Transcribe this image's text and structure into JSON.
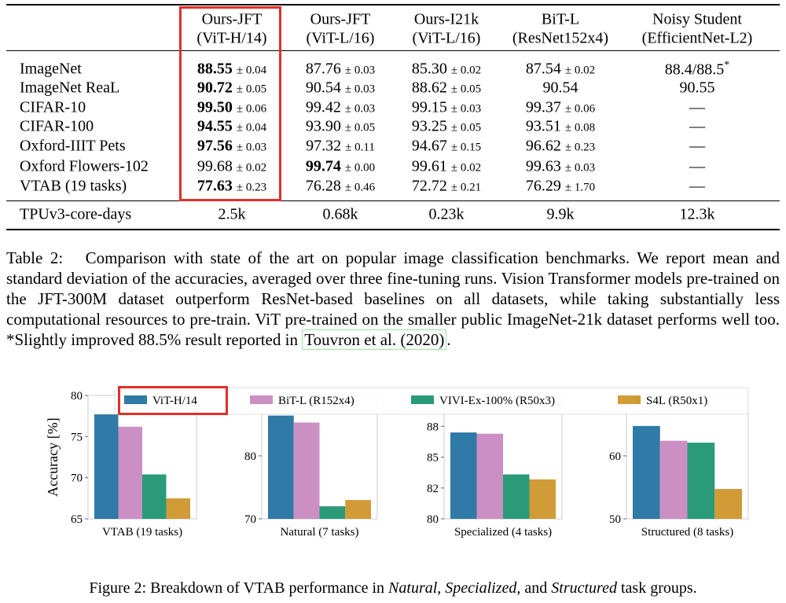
{
  "table": {
    "header": [
      [
        "Ours-JFT",
        "(ViT-H/14)"
      ],
      [
        "Ours-JFT",
        "(ViT-L/16)"
      ],
      [
        "Ours-I21k",
        "(ViT-L/16)"
      ],
      [
        "BiT-L",
        "(ResNet152x4)"
      ],
      [
        "Noisy Student",
        "(EfficientNet-L2)"
      ]
    ],
    "rows": [
      {
        "label": "ImageNet",
        "cells": [
          {
            "value": "88.55",
            "std": "± 0.04",
            "bold": true
          },
          {
            "value": "87.76",
            "std": "± 0.03"
          },
          {
            "value": "85.30",
            "std": "± 0.02"
          },
          {
            "value": "87.54",
            "std": "± 0.02"
          },
          {
            "value": "88.4/88.5",
            "note": "*"
          }
        ]
      },
      {
        "label": "ImageNet ReaL",
        "cells": [
          {
            "value": "90.72",
            "std": "± 0.05",
            "bold": true
          },
          {
            "value": "90.54",
            "std": "± 0.03"
          },
          {
            "value": "88.62",
            "std": "± 0.05"
          },
          {
            "value": "90.54"
          },
          {
            "value": "90.55"
          }
        ]
      },
      {
        "label": "CIFAR-10",
        "cells": [
          {
            "value": "99.50",
            "std": "± 0.06",
            "bold": true
          },
          {
            "value": "99.42",
            "std": "± 0.03"
          },
          {
            "value": "99.15",
            "std": "± 0.03"
          },
          {
            "value": "99.37",
            "std": "± 0.06"
          },
          {
            "value": "—"
          }
        ]
      },
      {
        "label": "CIFAR-100",
        "cells": [
          {
            "value": "94.55",
            "std": "± 0.04",
            "bold": true
          },
          {
            "value": "93.90",
            "std": "± 0.05"
          },
          {
            "value": "93.25",
            "std": "± 0.05"
          },
          {
            "value": "93.51",
            "std": "± 0.08"
          },
          {
            "value": "—"
          }
        ]
      },
      {
        "label": "Oxford-IIIT Pets",
        "cells": [
          {
            "value": "97.56",
            "std": "± 0.03",
            "bold": true
          },
          {
            "value": "97.32",
            "std": "± 0.11"
          },
          {
            "value": "94.67",
            "std": "± 0.15"
          },
          {
            "value": "96.62",
            "std": "± 0.23"
          },
          {
            "value": "—"
          }
        ]
      },
      {
        "label": "Oxford Flowers-102",
        "cells": [
          {
            "value": "99.68",
            "std": "± 0.02"
          },
          {
            "value": "99.74",
            "std": "± 0.00",
            "bold": true
          },
          {
            "value": "99.61",
            "std": "± 0.02"
          },
          {
            "value": "99.63",
            "std": "± 0.03"
          },
          {
            "value": "—"
          }
        ]
      },
      {
        "label": "VTAB (19 tasks)",
        "cells": [
          {
            "value": "77.63",
            "std": "± 0.23",
            "bold": true
          },
          {
            "value": "76.28",
            "std": "± 0.46"
          },
          {
            "value": "72.72",
            "std": "± 0.21"
          },
          {
            "value": "76.29",
            "std": "± 1.70"
          },
          {
            "value": "—"
          }
        ]
      }
    ],
    "footer": {
      "label": "TPUv3-core-days",
      "cells": [
        "2.5k",
        "0.68k",
        "0.23k",
        "9.9k",
        "12.3k"
      ]
    }
  },
  "table_caption": {
    "label": "Table 2:",
    "text": "Comparison with state of the art on popular image classification benchmarks. We report mean and standard deviation of the accuracies, averaged over three fine-tuning runs. Vision Transformer models pre-trained on the JFT-300M dataset outperform ResNet-based baselines on all datasets, while taking substantially less computational resources to pre-train. ViT pre-trained on the smaller public ImageNet-21k dataset performs well too. *Slightly improved 88.5% result reported in",
    "link": "Touvron et al. (2020)",
    "end": "."
  },
  "legend": [
    {
      "name": "ViT-H/14",
      "color": "#2f7aa6"
    },
    {
      "name": "BiT-L (R152x4)",
      "color": "#cc8fc3"
    },
    {
      "name": "VIVI-Ex-100% (R50x3)",
      "color": "#2b9a78"
    },
    {
      "name": "S4L (R50x1)",
      "color": "#d19b37"
    }
  ],
  "chart_data": [
    {
      "type": "bar",
      "xlabel": "VTAB (19 tasks)",
      "ylabel": "Accuracy [%]",
      "values": [
        77.7,
        76.2,
        70.4,
        67.5
      ],
      "ylim": [
        65,
        80
      ],
      "yticks": [
        65,
        70,
        75,
        80
      ]
    },
    {
      "type": "bar",
      "xlabel": "Natural (7 tasks)",
      "values": [
        86.4,
        85.3,
        72.0,
        73.0
      ],
      "ylim": [
        70,
        89.6
      ],
      "yticks": [
        70,
        80
      ]
    },
    {
      "type": "bar",
      "xlabel": "Specialized (4 tasks)",
      "values": [
        87.0,
        86.9,
        83.6,
        83.2
      ],
      "ylim": [
        80,
        90
      ],
      "yticks": [
        80,
        {
          "value": 82.5,
          "label": "82"
        },
        85,
        {
          "value": 87.5,
          "label": "88"
        }
      ]
    },
    {
      "type": "bar",
      "xlabel": "Structured (8 tasks)",
      "values": [
        64.75,
        62.4,
        62.1,
        54.75
      ],
      "ylim": [
        50,
        69.6
      ],
      "yticks": [
        50,
        60
      ]
    }
  ],
  "figure_caption": [
    {
      "text": "Figure 2: Breakdown of VTAB performance in "
    },
    {
      "text": "Natural",
      "italic": true
    },
    {
      "text": ", "
    },
    {
      "text": "Specialized",
      "italic": true
    },
    {
      "text": ", and "
    },
    {
      "text": "Structured",
      "italic": true
    },
    {
      "text": " task groups."
    }
  ]
}
